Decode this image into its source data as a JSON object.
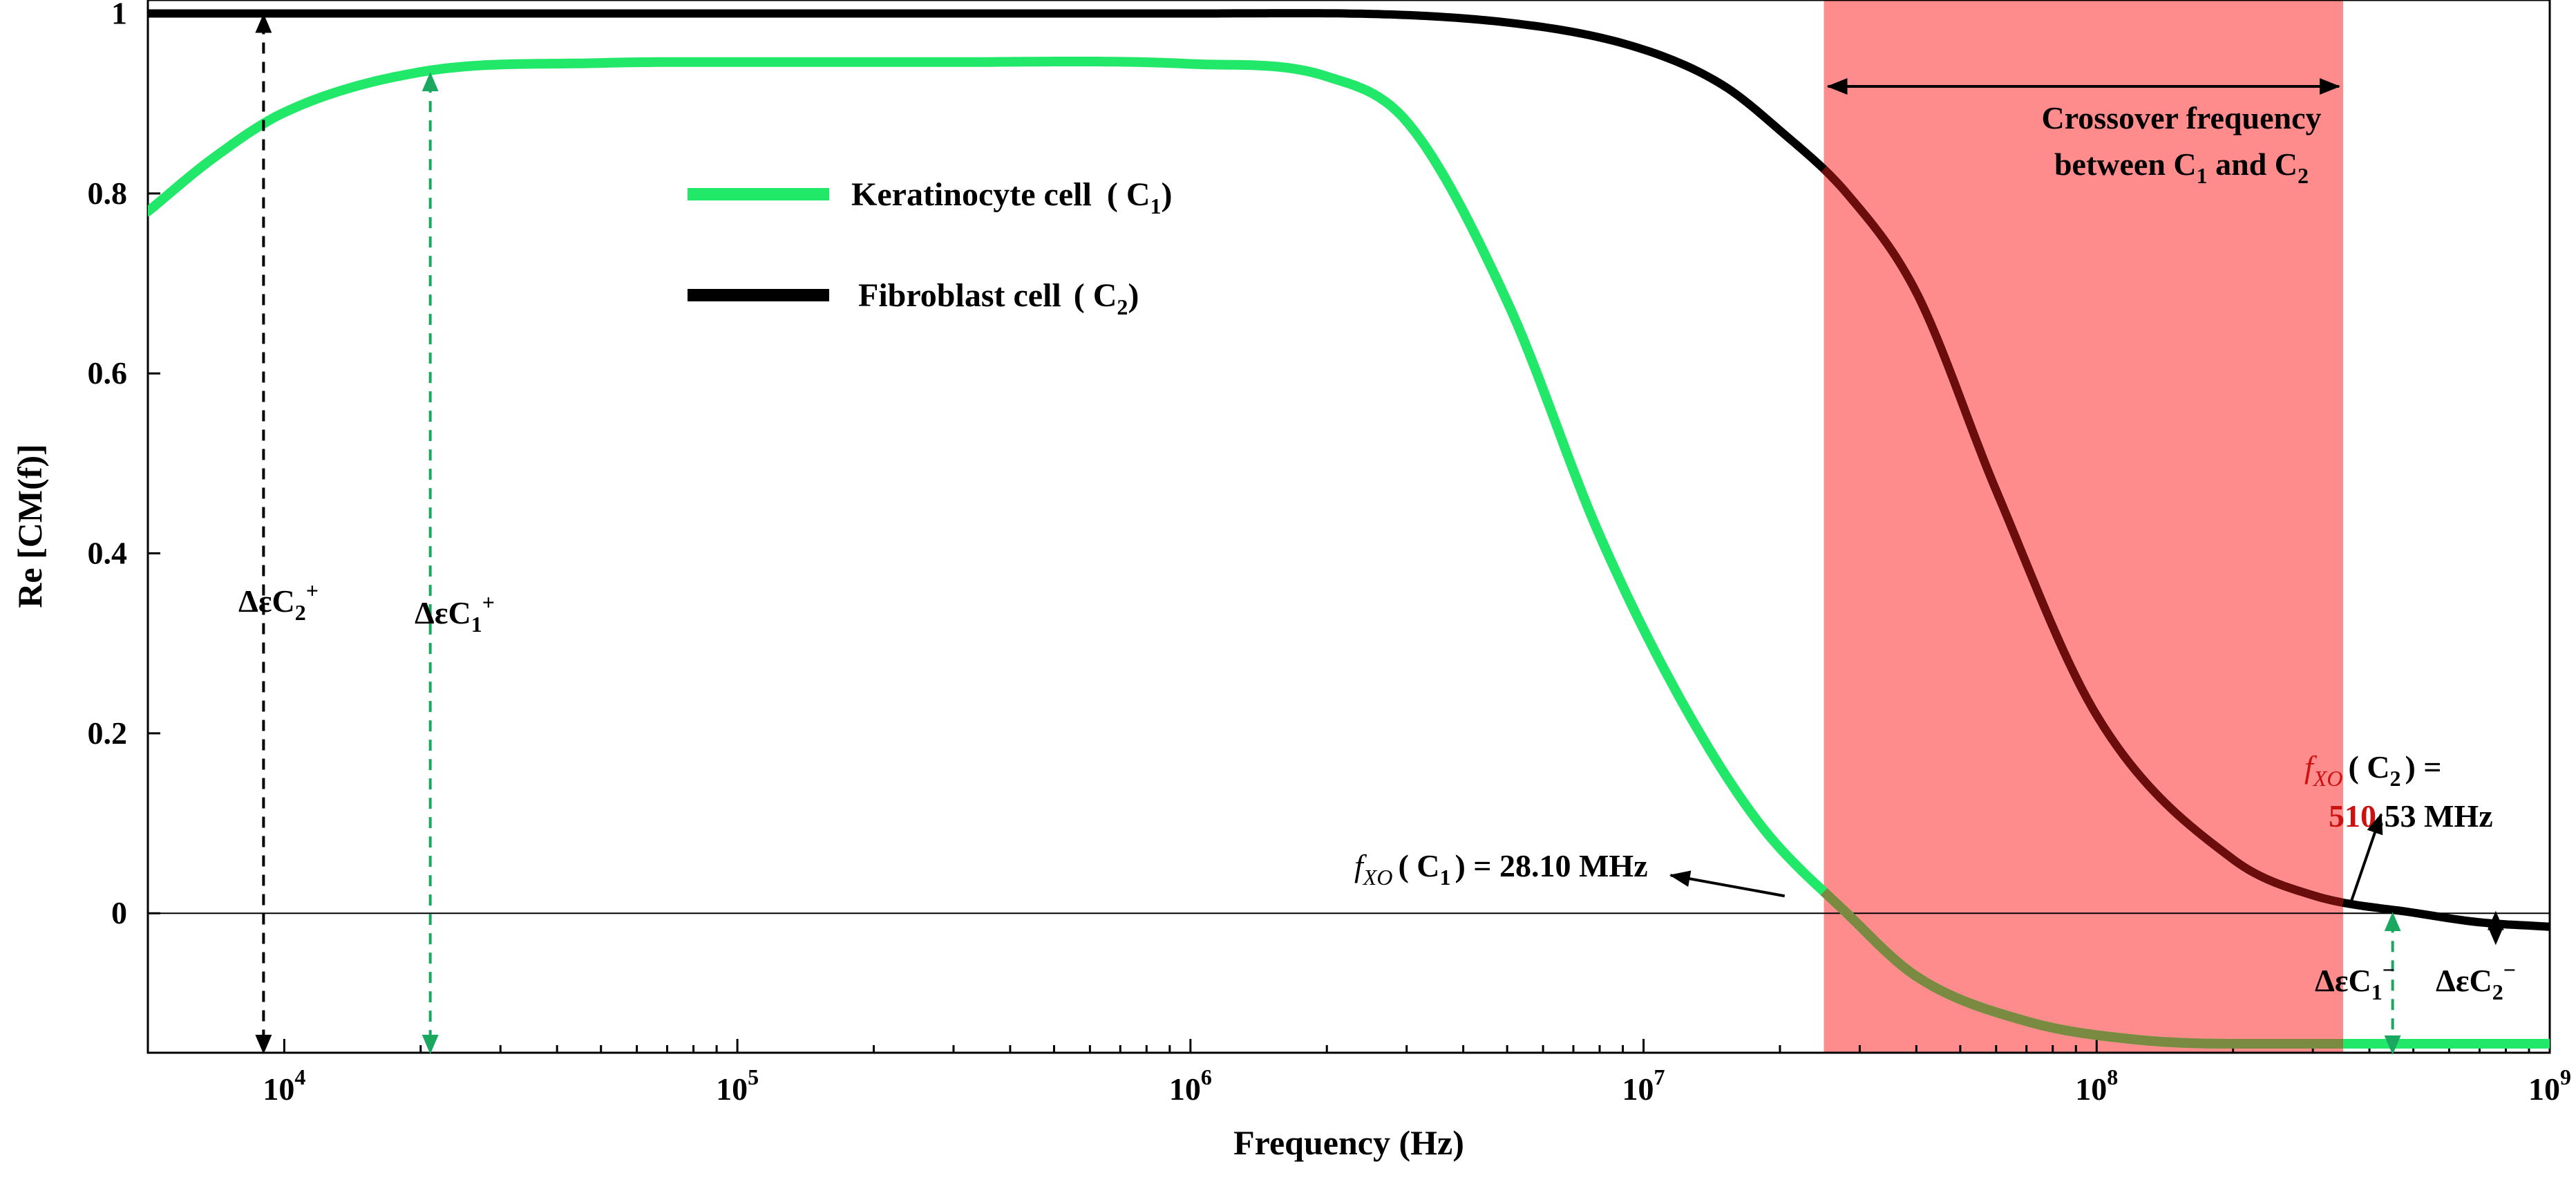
{
  "chart_data": {
    "type": "line",
    "title": "",
    "xlabel": "Frequency (Hz)",
    "ylabel": "Re [CM(f)]",
    "x_scale": "log",
    "xlim": [
      5000,
      1000000000
    ],
    "ylim": [
      -0.155,
      1.015
    ],
    "x_ticks": [
      {
        "value": 10000,
        "base": "10",
        "exp": "4"
      },
      {
        "value": 100000,
        "base": "10",
        "exp": "5"
      },
      {
        "value": 1000000,
        "base": "10",
        "exp": "6"
      },
      {
        "value": 10000000,
        "base": "10",
        "exp": "7"
      },
      {
        "value": 100000000,
        "base": "10",
        "exp": "8"
      },
      {
        "value": 1000000000,
        "base": "10",
        "exp": "9"
      }
    ],
    "y_ticks": [
      {
        "value": 0,
        "label": "0"
      },
      {
        "value": 0.2,
        "label": "0.2"
      },
      {
        "value": 0.4,
        "label": "0.4"
      },
      {
        "value": 0.6,
        "label": "0.6"
      },
      {
        "value": 0.8,
        "label": "0.8"
      },
      {
        "value": 1,
        "label": "1"
      }
    ],
    "series": [
      {
        "name": "Keratinocyte cell",
        "subscript": "1",
        "color": "#22e86a",
        "x": [
          5000,
          7000,
          10000,
          20000,
          50000,
          100000,
          300000,
          1000000,
          2000000,
          3000000,
          5000000,
          8000000,
          12000000,
          18000000,
          28100000,
          40000000,
          70000000,
          120000000,
          200000000,
          400000000,
          1000000000
        ],
        "y": [
          0.78,
          0.84,
          0.89,
          0.935,
          0.945,
          0.946,
          0.946,
          0.944,
          0.93,
          0.88,
          0.68,
          0.42,
          0.24,
          0.1,
          0.0,
          -0.07,
          -0.12,
          -0.14,
          -0.145,
          -0.145,
          -0.145
        ]
      },
      {
        "name": "Fibroblast cell",
        "subscript": "2",
        "color": "#000000",
        "x": [
          5000,
          100000,
          1000000,
          5000000,
          10000000,
          15000000,
          20000000,
          28100000,
          40000000,
          60000000,
          100000000,
          200000000,
          300000000,
          510530000,
          700000000,
          1000000000
        ],
        "y": [
          1.0,
          1.0,
          1.0,
          0.99,
          0.96,
          0.92,
          0.87,
          0.8,
          0.69,
          0.47,
          0.22,
          0.06,
          0.02,
          0.0,
          -0.01,
          -0.015
        ]
      }
    ],
    "crossover_band": {
      "x_start": 25000000,
      "x_end": 350000000,
      "color": "#ff8080"
    },
    "legend": {
      "position": "top-center"
    },
    "annotations": {
      "band_label_line1": "Crossover frequency",
      "band_label_line2_a": "between C",
      "band_label_line2_sub1": "1",
      "band_label_line2_b": " and C",
      "band_label_line2_sub2": "2",
      "fxo_f": "f",
      "fxo_sub": "XO",
      "fxo_c1_text": "( C",
      "fxo_c1_sub": "1",
      "fxo_c1_value": ") = 28.10 MHz",
      "fxo_c2_text": "( C",
      "fxo_c2_sub": "2",
      "fxo_c2_eq": ") =",
      "fxo_c2_value_red": "510",
      "fxo_c2_value_rest": ".53 MHz",
      "delta_c2_plus": "ΔεC",
      "delta_c2_plus_sub": "2",
      "delta_c2_plus_sup": "+",
      "delta_c1_plus": "ΔεC",
      "delta_c1_plus_sub": "1",
      "delta_c1_plus_sup": "+",
      "delta_c1_minus": "ΔεC",
      "delta_c1_minus_sub": "1",
      "delta_c1_minus_sup": "−",
      "delta_c2_minus": "ΔεC",
      "delta_c2_minus_sub": "2",
      "delta_c2_minus_sup": "−",
      "fxo_c1_freq": 28100000,
      "fxo_c2_freq": 510530000
    },
    "colors": {
      "green_arrow": "#1aa860",
      "red_text": "#cc1111",
      "dark_red_line": "#6b0d0d",
      "dim_green": "#7a8a40"
    }
  }
}
